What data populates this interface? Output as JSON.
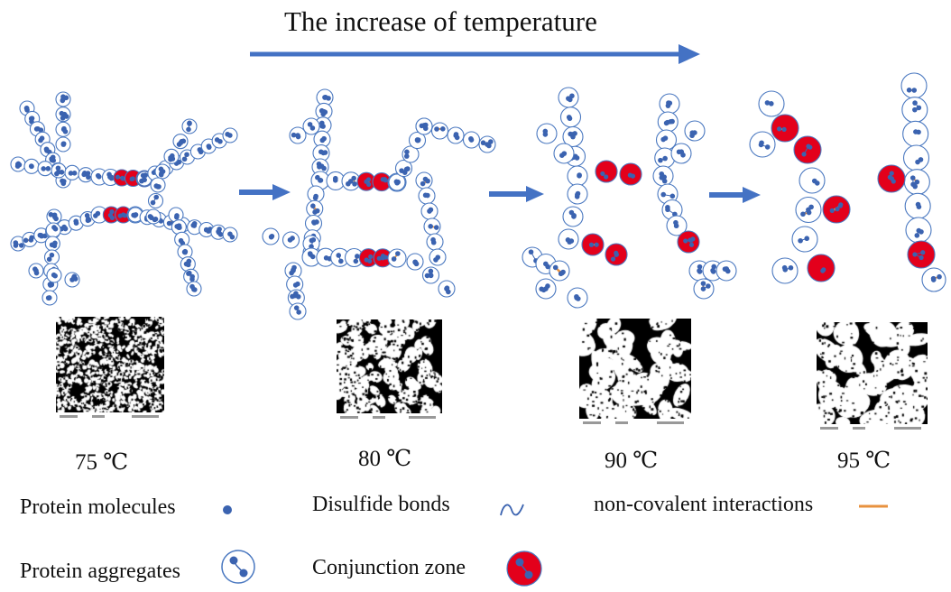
{
  "title": "The increase of temperature",
  "stages": [
    {
      "temperature": "75 ℃"
    },
    {
      "temperature": "80 ℃"
    },
    {
      "temperature": "90 ℃"
    },
    {
      "temperature": "95 ℃"
    }
  ],
  "legend": {
    "protein_molecules": "Protein molecules",
    "disulfide_bonds": "Disulfide bonds",
    "noncovalent": "non-covalent interactions",
    "protein_aggregates": "Protein aggregates",
    "conjunction_zone": "Conjunction zone"
  },
  "colors": {
    "arrow": "#4472c4",
    "molecule": "#3b63b0",
    "aggregate_outline": "#4a78c0",
    "conjunction": "#e3001b",
    "noncovalent": "#e8923f",
    "text": "#111111"
  },
  "icons": {
    "protein_molecule": "dot-icon",
    "disulfide_bond": "wave-icon",
    "noncovalent": "line-icon",
    "protein_aggregate": "aggregate-icon",
    "conjunction_zone": "conjunction-icon"
  }
}
